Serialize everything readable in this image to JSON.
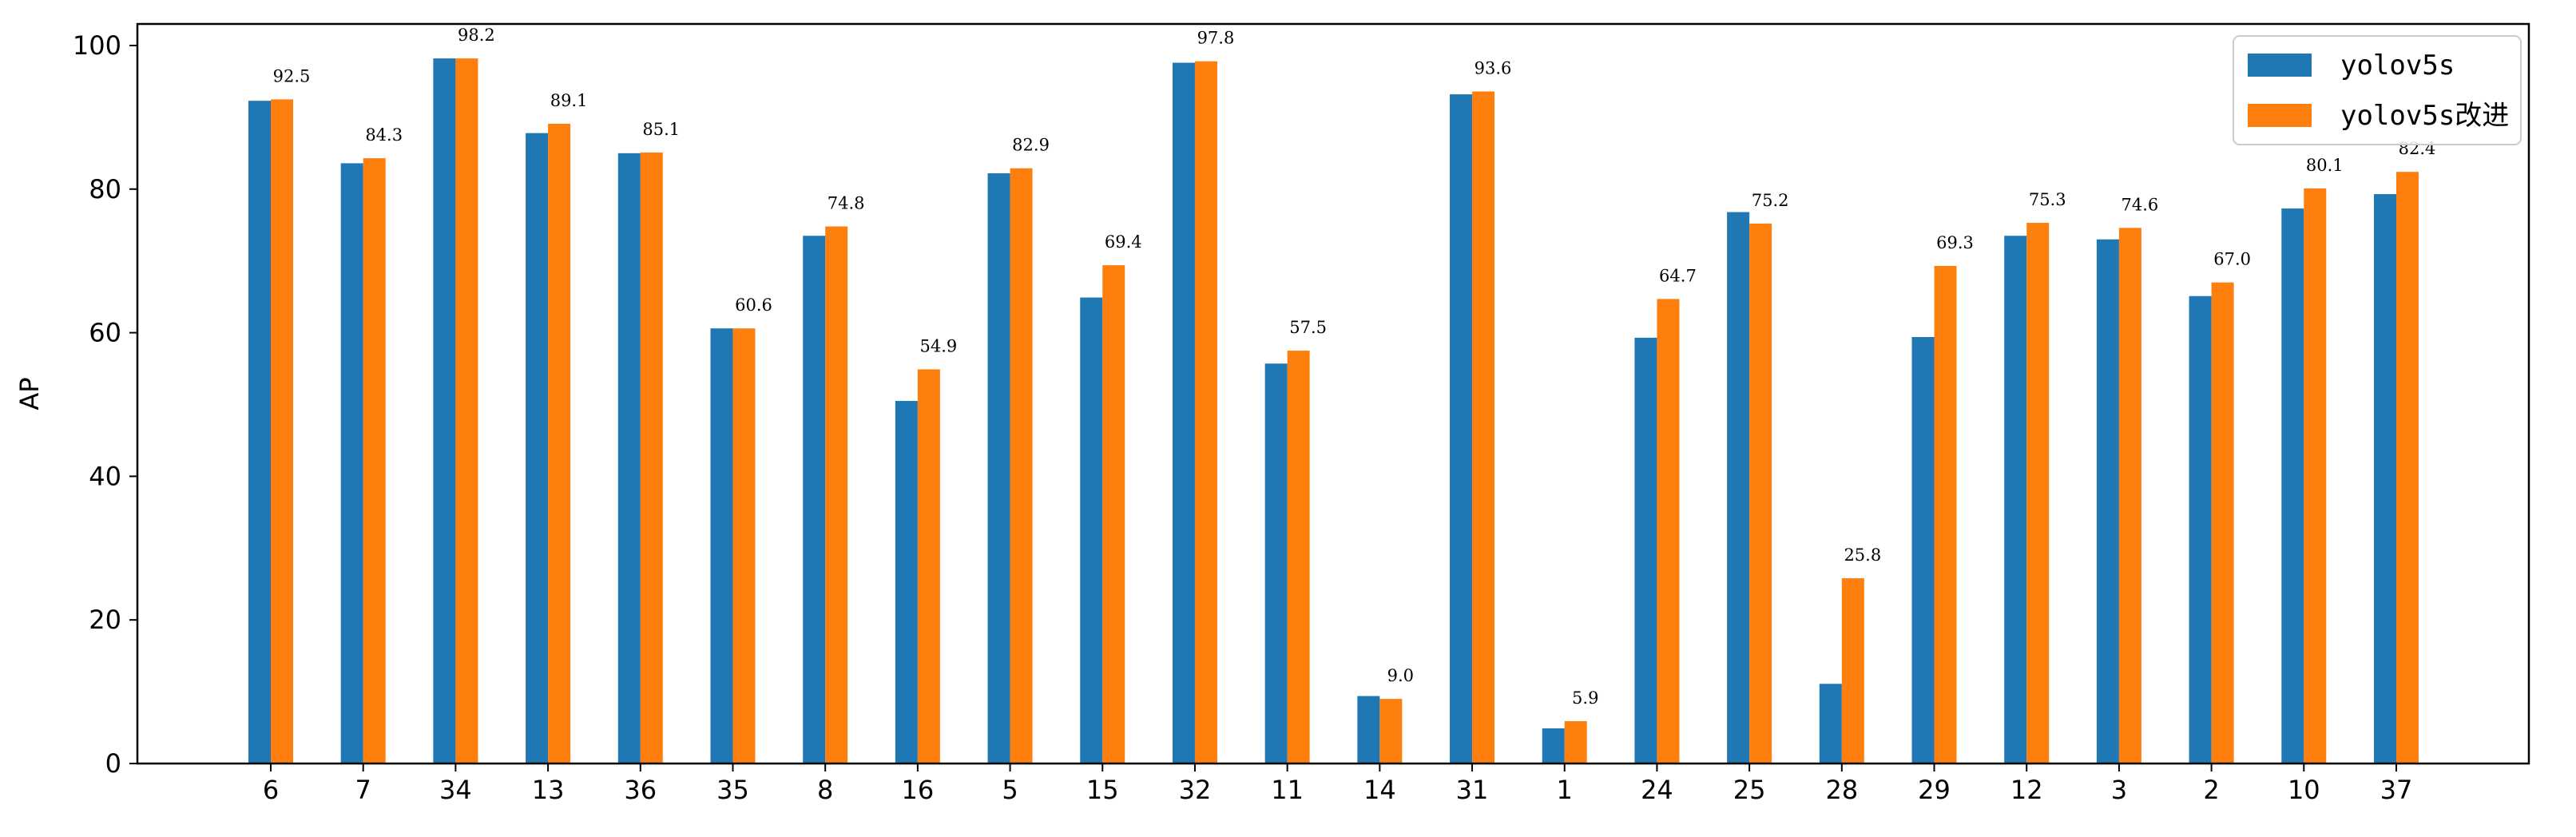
{
  "chart_data": {
    "type": "bar",
    "ylabel": "AP",
    "xlabel": "",
    "title": "",
    "ylim": [
      0,
      103
    ],
    "yticks": [
      0,
      20,
      40,
      60,
      80,
      100
    ],
    "grid": false,
    "legend_position": "top-right",
    "categories": [
      "6",
      "7",
      "34",
      "13",
      "36",
      "35",
      "8",
      "16",
      "5",
      "15",
      "32",
      "11",
      "14",
      "31",
      "1",
      "24",
      "25",
      "28",
      "29",
      "12",
      "3",
      "2",
      "10",
      "37"
    ],
    "series": [
      {
        "name": "yolov5s",
        "color": "#1f77b4",
        "values": [
          92.3,
          83.6,
          98.2,
          87.8,
          85.0,
          60.6,
          73.5,
          50.5,
          82.2,
          64.9,
          97.6,
          55.7,
          9.4,
          93.2,
          4.9,
          59.3,
          76.8,
          11.1,
          59.4,
          73.5,
          73.0,
          65.1,
          77.3,
          79.3
        ]
      },
      {
        "name": "yolov5s改进",
        "color": "#ff7f0e",
        "values": [
          92.5,
          84.3,
          98.2,
          89.1,
          85.1,
          60.6,
          74.8,
          54.9,
          82.9,
          69.4,
          97.8,
          57.5,
          9.0,
          93.6,
          5.9,
          64.7,
          75.2,
          25.8,
          69.3,
          75.3,
          74.6,
          67.0,
          80.1,
          82.4
        ]
      }
    ],
    "data_labels": [
      "92.5",
      "84.3",
      "98.2",
      "89.1",
      "85.1",
      "60.6",
      "74.8",
      "54.9",
      "82.9",
      "69.4",
      "97.8",
      "57.5",
      "9.0",
      "93.6",
      "5.9",
      "64.7",
      "75.2",
      "25.8",
      "69.3",
      "75.3",
      "74.6",
      "67.0",
      "80.1",
      "82.4"
    ]
  }
}
